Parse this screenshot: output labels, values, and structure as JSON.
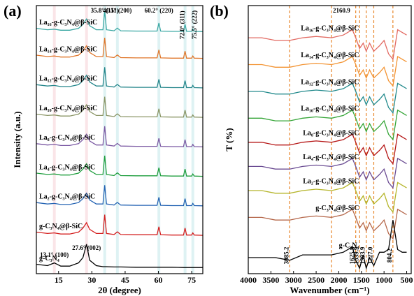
{
  "chart_data": [
    {
      "type": "line",
      "panel_label": "(a)",
      "xlabel": "2θ (degree)",
      "ylabel": "Intensity (a.u.)",
      "xlim": [
        5,
        80
      ],
      "xticks": [
        15,
        30,
        45,
        60,
        75
      ],
      "ylim": [
        0,
        100
      ],
      "x": [
        5,
        10,
        13.1,
        16,
        20,
        24,
        26,
        27.6,
        29,
        32,
        35,
        35.8,
        36.6,
        40,
        41.5,
        43,
        50,
        59.4,
        60.2,
        61,
        66,
        71.3,
        72,
        72.7,
        75,
        75.5,
        76.2,
        80
      ],
      "series": [
        {
          "name": "La₁₆-g-C₃N₄@β-SiC",
          "color": "#3aa7a3",
          "values": [
            91.5,
            91,
            91.2,
            90.8,
            90.8,
            91.5,
            93,
            95,
            92.5,
            91,
            91,
            98,
            91,
            90.6,
            91.6,
            90.6,
            90.5,
            90.5,
            93.5,
            90.5,
            90.4,
            90.4,
            93,
            90.4,
            90.4,
            91.2,
            90.4,
            90.3
          ]
        },
        {
          "name": "La₁₄-g-C₃N₄@β-SiC",
          "color": "#e0762a",
          "values": [
            81.5,
            81,
            81.2,
            80.8,
            80.8,
            81.5,
            83,
            85,
            82.5,
            81,
            81,
            88,
            81,
            80.6,
            81.6,
            80.6,
            80.5,
            80.5,
            83.5,
            80.5,
            80.4,
            80.4,
            83,
            80.4,
            80.4,
            81.2,
            80.4,
            80.3
          ]
        },
        {
          "name": "La₁₂-g-C₃N₄@β-SiC",
          "color": "#23858a",
          "values": [
            70.5,
            70,
            70.2,
            69.8,
            69.8,
            70.5,
            72,
            74,
            71.5,
            70,
            70,
            77,
            70,
            69.6,
            70.6,
            69.6,
            69.5,
            69.5,
            72.5,
            69.5,
            69.4,
            69.4,
            72,
            69.4,
            69.4,
            70.2,
            69.4,
            69.3
          ]
        },
        {
          "name": "La₁₀-g-C₃N₄@β-SiC",
          "color": "#8a9565",
          "values": [
            59.5,
            59,
            59.2,
            58.8,
            58.8,
            59.5,
            61,
            63,
            60.5,
            59,
            59,
            66,
            59,
            58.6,
            59.6,
            58.6,
            58.5,
            58.5,
            61.5,
            58.5,
            58.4,
            58.4,
            61,
            58.4,
            58.4,
            59.2,
            58.4,
            58.3
          ]
        },
        {
          "name": "La₈-g-C₃N₄@β-SiC",
          "color": "#7b59a3",
          "values": [
            48.5,
            48,
            48.2,
            47.8,
            47.8,
            48.5,
            50,
            52,
            49.5,
            48,
            48,
            55,
            48,
            47.6,
            48.6,
            47.6,
            47.5,
            47.5,
            50.5,
            47.5,
            47.4,
            47.4,
            50,
            47.4,
            47.4,
            48.2,
            47.4,
            47.3
          ]
        },
        {
          "name": "La₄-g-C₃N₄@β-SiC",
          "color": "#1f9e3e",
          "values": [
            37.5,
            37,
            37.2,
            36.8,
            36.8,
            37.5,
            39,
            41,
            38.5,
            37,
            37,
            44,
            37,
            36.6,
            37.6,
            36.6,
            36.5,
            36.5,
            39.5,
            36.5,
            36.4,
            36.4,
            39,
            36.4,
            36.4,
            37.2,
            36.4,
            36.3
          ]
        },
        {
          "name": "La₂-g-C₃N₄@β-SiC",
          "color": "#2463b3",
          "values": [
            26.5,
            26,
            26.2,
            25.8,
            25.8,
            26.5,
            28,
            30,
            27.5,
            26,
            26,
            33,
            26,
            25.6,
            26.6,
            25.6,
            25.5,
            25.5,
            28.5,
            25.5,
            25.4,
            25.4,
            28,
            25.4,
            25.4,
            26.2,
            25.4,
            25.3
          ]
        },
        {
          "name": "g-C₃N₄@β-SiC",
          "color": "#d42020",
          "values": [
            15.5,
            15,
            15.2,
            14.8,
            14.8,
            15.5,
            17,
            19,
            16.5,
            15,
            15,
            22,
            15,
            14.6,
            15.6,
            14.6,
            14.5,
            14.5,
            17.5,
            14.5,
            14.4,
            14.4,
            17,
            14.4,
            14.4,
            15.2,
            14.4,
            14.3
          ]
        },
        {
          "name": "g-C₃N₄",
          "color": "#000000",
          "values": [
            3.5,
            3,
            4,
            2.8,
            2.8,
            4,
            6,
            11,
            5,
            3,
            2.6,
            2.6,
            2.6,
            2.5,
            2.5,
            2.5,
            2.4,
            2.4,
            2.4,
            2.4,
            2.4,
            2.3,
            2.3,
            2.3,
            2.3,
            2.3,
            2.3,
            2.3
          ]
        }
      ],
      "top_peaks": [
        {
          "value": 35.8,
          "label": "35.8° (111)"
        },
        {
          "value": 41.5,
          "label": "41.5° (200)"
        },
        {
          "value": 60.2,
          "label": "60.2° (220)"
        },
        {
          "value": 72.0,
          "label": "72.0° (311)"
        },
        {
          "value": 75.5,
          "label": "75.5° (222)"
        }
      ],
      "bottom_peaks": [
        {
          "value": 13.1,
          "label": "13.1° (100)"
        },
        {
          "value": 27.6,
          "label": "27.6° (002)"
        }
      ]
    },
    {
      "type": "line",
      "panel_label": "(b)",
      "xlabel": "Wavenumber (cm⁻¹)",
      "ylabel": "T (%)",
      "xlim": [
        4000,
        400
      ],
      "xticks": [
        4000,
        3500,
        3000,
        2500,
        2000,
        1500,
        1000,
        500
      ],
      "ylim": [
        0,
        100
      ],
      "x": [
        4000,
        3700,
        3400,
        3085,
        2800,
        2500,
        2160,
        1900,
        1700,
        1625,
        1540,
        1460,
        1394,
        1320,
        1227,
        1100,
        1000,
        900,
        804,
        700,
        600,
        500
      ],
      "series": [
        {
          "name": "La₁₆-g-C₃N₄@β-SiC",
          "color": "#e26a62",
          "values": [
            88,
            88,
            87,
            87,
            88,
            88.5,
            88,
            89,
            91,
            88,
            84,
            86,
            83,
            86,
            83,
            85,
            87,
            82,
            80,
            91,
            90,
            89
          ]
        },
        {
          "name": "La₁₄-g-C₃N₄@β-SiC",
          "color": "#f39433",
          "values": [
            78,
            78,
            77,
            77,
            78,
            78.5,
            78,
            79,
            81,
            78,
            74,
            76,
            73,
            76,
            73,
            75,
            77,
            72,
            70,
            81,
            80,
            79
          ]
        },
        {
          "name": "La₁₂-g-C₃N₄@β-SiC",
          "color": "#228a8c",
          "values": [
            68,
            68,
            67,
            67,
            68,
            68.5,
            68,
            69,
            71,
            68,
            64,
            66,
            63,
            66,
            63,
            65,
            67,
            62,
            60,
            71,
            70,
            69
          ]
        },
        {
          "name": "La₁₀-g-C₃N₄@β-SiC",
          "color": "#35a537",
          "values": [
            58,
            58,
            57,
            57,
            58,
            58.5,
            58,
            59,
            61,
            58,
            54,
            56,
            53,
            56,
            53,
            55,
            57,
            52,
            50,
            61,
            60,
            59
          ]
        },
        {
          "name": "La₈-g-C₃N₄@β-SiC",
          "color": "#b51515",
          "values": [
            49,
            49,
            48,
            48,
            49,
            49.5,
            49,
            50,
            52,
            49,
            45,
            47,
            44,
            47,
            44,
            46,
            48,
            43,
            41,
            52,
            51,
            50
          ]
        },
        {
          "name": "La₄-g-C₃N₄@β-SiC",
          "color": "#6b4c93",
          "values": [
            40,
            40,
            39,
            39,
            40,
            40.5,
            40,
            41,
            43,
            40,
            36,
            38,
            35,
            38,
            35,
            37,
            39,
            34,
            32,
            43,
            42,
            41
          ]
        },
        {
          "name": "La₂-g-C₃N₄@β-SiC",
          "color": "#b5b52a",
          "values": [
            31,
            31,
            30,
            30,
            31,
            31.5,
            31,
            32,
            34,
            31,
            27,
            29,
            26,
            29,
            26,
            28,
            30,
            25,
            23,
            34,
            33,
            32
          ]
        },
        {
          "name": "g-C₃N₄@β-SiC",
          "color": "#b5674a",
          "values": [
            21,
            21,
            20,
            20,
            21,
            21.5,
            21,
            22,
            24,
            21,
            17,
            19,
            16,
            19,
            16,
            18,
            20,
            15,
            13,
            24,
            23,
            22
          ]
        },
        {
          "name": "g-C₃N₄",
          "color": "#000000",
          "values": [
            6,
            6,
            6,
            5,
            7,
            7,
            7,
            8,
            10,
            5,
            2,
            7,
            2,
            6,
            3,
            8,
            8,
            9,
            20,
            9,
            8,
            8
          ]
        }
      ],
      "top_bands": [
        2160.9
      ],
      "bottom_bands": [
        3085.2,
        1625.8,
        1539.9,
        1393.9,
        {
          "value": 1227,
          "label": "1227.0"
        },
        804.2
      ]
    }
  ]
}
